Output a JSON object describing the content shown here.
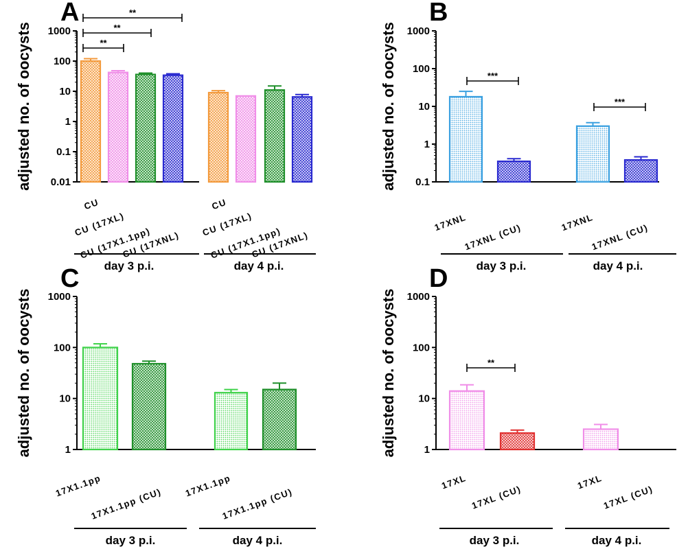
{
  "colors": {
    "orange": "#f39a3c",
    "pink": "#f08ee8",
    "green_light": "#3fd24a",
    "green_dark": "#1f8f2a",
    "blue_light": "#3aa0e0",
    "blue_dark": "#2a2ad0",
    "red": "#e03030"
  },
  "chart_data": [
    {
      "panel": "A",
      "type": "bar",
      "ylabel": "adjusted no. of oocysts",
      "yscale": "log",
      "ylim": [
        0.01,
        1000
      ],
      "yticks": [
        "0.01",
        "0.1",
        "1",
        "10",
        "100",
        "1000"
      ],
      "groups": [
        {
          "label": "day 3 p.i.",
          "bars": [
            {
              "category": "CU",
              "value": 100,
              "error": 20,
              "color": "orange",
              "pattern": "cross"
            },
            {
              "category": "CU (17XL)",
              "value": 42,
              "error": 6,
              "color": "pink",
              "pattern": "cross"
            },
            {
              "category": "CU (17X1.1pp)",
              "value": 36,
              "error": 4,
              "color": "green_dark",
              "pattern": "cross"
            },
            {
              "category": "CU (17XNL)",
              "value": 34,
              "error": 4,
              "color": "blue_dark",
              "pattern": "cross"
            }
          ]
        },
        {
          "label": "day 4 p.i.",
          "bars": [
            {
              "category": "CU",
              "value": 9,
              "error": 1.5,
              "color": "orange",
              "pattern": "cross"
            },
            {
              "category": "CU (17XL)",
              "value": 7,
              "error": 0,
              "color": "pink",
              "pattern": "cross"
            },
            {
              "category": "CU (17X1.1pp)",
              "value": 11,
              "error": 4,
              "color": "green_dark",
              "pattern": "cross"
            },
            {
              "category": "CU (17XNL)",
              "value": 6.5,
              "error": 1.3,
              "color": "blue_dark",
              "pattern": "cross"
            }
          ]
        }
      ],
      "significance": [
        {
          "from": [
            0,
            0
          ],
          "to": [
            0,
            1
          ],
          "label": "**"
        },
        {
          "from": [
            0,
            0
          ],
          "to": [
            0,
            2
          ],
          "label": "**"
        },
        {
          "from": [
            0,
            0
          ],
          "to": [
            0,
            3
          ],
          "label": "**"
        }
      ]
    },
    {
      "panel": "B",
      "type": "bar",
      "ylabel": "adjusted no. of oocysts",
      "yscale": "log",
      "ylim": [
        0.1,
        1000
      ],
      "yticks": [
        "0.1",
        "1",
        "10",
        "100",
        "1000"
      ],
      "groups": [
        {
          "label": "day 3 p.i.",
          "bars": [
            {
              "category": "17XNL",
              "value": 18,
              "error": 7,
              "color": "blue_light",
              "pattern": "dots"
            },
            {
              "category": "17XNL (CU)",
              "value": 0.35,
              "error": 0.06,
              "color": "blue_dark",
              "pattern": "cross"
            }
          ]
        },
        {
          "label": "day 4 p.i.",
          "bars": [
            {
              "category": "17XNL",
              "value": 3,
              "error": 0.7,
              "color": "blue_light",
              "pattern": "dots"
            },
            {
              "category": "17XNL (CU)",
              "value": 0.38,
              "error": 0.08,
              "color": "blue_dark",
              "pattern": "cross"
            }
          ]
        }
      ],
      "significance": [
        {
          "from": [
            0,
            0
          ],
          "to": [
            0,
            1
          ],
          "label": "***"
        },
        {
          "from": [
            1,
            0
          ],
          "to": [
            1,
            1
          ],
          "label": "***"
        }
      ]
    },
    {
      "panel": "C",
      "type": "bar",
      "ylabel": "adjusted no. of oocysts",
      "yscale": "log",
      "ylim": [
        1,
        1000
      ],
      "yticks": [
        "1",
        "10",
        "100",
        "1000"
      ],
      "groups": [
        {
          "label": "day 3 p.i.",
          "bars": [
            {
              "category": "17X1.1pp",
              "value": 100,
              "error": 18,
              "color": "green_light",
              "pattern": "dots"
            },
            {
              "category": "17X1.1pp (CU)",
              "value": 48,
              "error": 6,
              "color": "green_dark",
              "pattern": "cross"
            }
          ]
        },
        {
          "label": "day 4 p.i.",
          "bars": [
            {
              "category": "17X1.1pp",
              "value": 13,
              "error": 2,
              "color": "green_light",
              "pattern": "dots"
            },
            {
              "category": "17X1.1pp (CU)",
              "value": 15,
              "error": 5,
              "color": "green_dark",
              "pattern": "cross"
            }
          ]
        }
      ],
      "significance": []
    },
    {
      "panel": "D",
      "type": "bar",
      "ylabel": "adjusted no. of oocysts",
      "yscale": "log",
      "ylim": [
        1,
        1000
      ],
      "yticks": [
        "1",
        "10",
        "100",
        "1000"
      ],
      "groups": [
        {
          "label": "day 3 p.i.",
          "bars": [
            {
              "category": "17XL",
              "value": 14,
              "error": 4.5,
              "color": "pink",
              "pattern": "dots"
            },
            {
              "category": "17XL (CU)",
              "value": 2.1,
              "error": 0.3,
              "color": "red",
              "pattern": "cross"
            }
          ]
        },
        {
          "label": "day 4 p.i.",
          "bars": [
            {
              "category": "17XL",
              "value": 2.5,
              "error": 0.6,
              "color": "pink",
              "pattern": "dots"
            },
            {
              "category": "17XL (CU)",
              "value": null,
              "error": 0,
              "color": "red",
              "pattern": "cross"
            }
          ]
        }
      ],
      "significance": [
        {
          "from": [
            0,
            0
          ],
          "to": [
            0,
            1
          ],
          "label": "**"
        }
      ]
    }
  ]
}
